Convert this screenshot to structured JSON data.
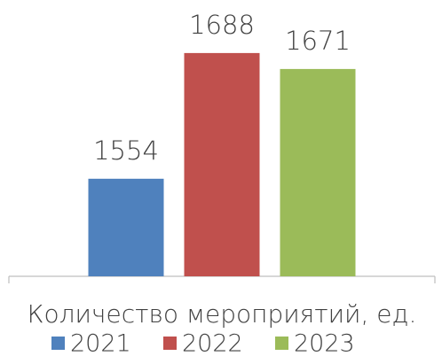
{
  "chart_data": {
    "type": "bar",
    "categories": [
      "Количество мероприятий, ед."
    ],
    "series": [
      {
        "name": "2021",
        "color": "#4f81bd",
        "values": [
          1554
        ]
      },
      {
        "name": "2022",
        "color": "#c0504d",
        "values": [
          1688
        ]
      },
      {
        "name": "2023",
        "color": "#9bbb59",
        "values": [
          1671
        ]
      }
    ],
    "ylim": [
      1450,
      1720
    ],
    "legend": "bottom"
  }
}
